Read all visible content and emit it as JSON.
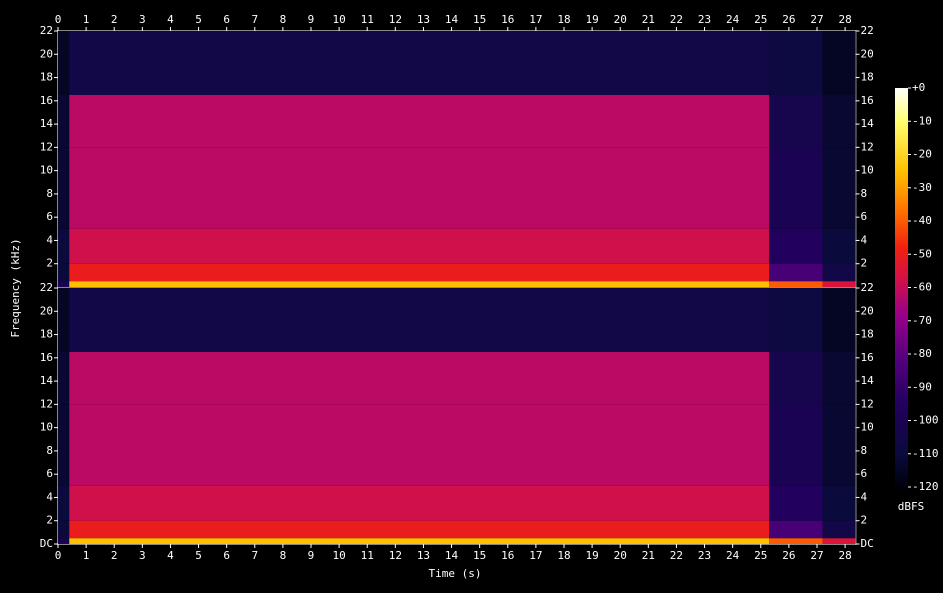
{
  "chart_data": {
    "type": "spectrogram",
    "xlabel": "Time (s)",
    "ylabel": "Frequency (kHz)",
    "colorbar_label": "dBFS",
    "xlim": [
      0,
      28.37
    ],
    "xticks": [
      0,
      1,
      2,
      3,
      4,
      5,
      6,
      7,
      8,
      9,
      10,
      11,
      12,
      13,
      14,
      15,
      16,
      17,
      18,
      19,
      20,
      21,
      22,
      23,
      24,
      25,
      26,
      27,
      28
    ],
    "ylim": [
      0,
      22
    ],
    "yticks": [
      {
        "value": 0,
        "label": "DC"
      },
      2,
      4,
      6,
      8,
      10,
      12,
      14,
      16,
      18,
      20,
      22
    ],
    "clim": [
      -120,
      0
    ],
    "cticks": [
      {
        "value": 0,
        "label": "+0"
      },
      -10,
      -20,
      -30,
      -40,
      -50,
      -60,
      -70,
      -80,
      -90,
      -100,
      -110,
      -120
    ],
    "colormap": [
      [
        -120,
        "#00000c"
      ],
      [
        -110,
        "#0a0a3c"
      ],
      [
        -95,
        "#22005e"
      ],
      [
        -80,
        "#5a0080"
      ],
      [
        -68,
        "#9a0088"
      ],
      [
        -58,
        "#d0104a"
      ],
      [
        -48,
        "#f02010"
      ],
      [
        -38,
        "#ff6a00"
      ],
      [
        -25,
        "#ffc000"
      ],
      [
        -10,
        "#ffff70"
      ],
      [
        0,
        "#ffffff"
      ]
    ],
    "time_edges": [
      0,
      0.4,
      25.3,
      27.2,
      28.37
    ],
    "freq_edges": [
      0,
      0.5,
      2,
      5,
      12,
      16.5,
      22
    ],
    "channels": [
      {
        "values": [
          [
            -100,
            -110,
            -110,
            -112,
            -112,
            -115
          ],
          [
            -25,
            -50,
            -58,
            -62,
            -62,
            -105
          ],
          [
            -40,
            -85,
            -95,
            -100,
            -102,
            -108
          ],
          [
            -55,
            -105,
            -110,
            -112,
            -112,
            -115
          ]
        ]
      },
      {
        "values": [
          [
            -100,
            -110,
            -110,
            -112,
            -112,
            -115
          ],
          [
            -25,
            -50,
            -58,
            -62,
            -62,
            -105
          ],
          [
            -40,
            -85,
            -95,
            -100,
            -102,
            -108
          ],
          [
            -55,
            -105,
            -110,
            -112,
            -112,
            -115
          ]
        ]
      }
    ]
  }
}
